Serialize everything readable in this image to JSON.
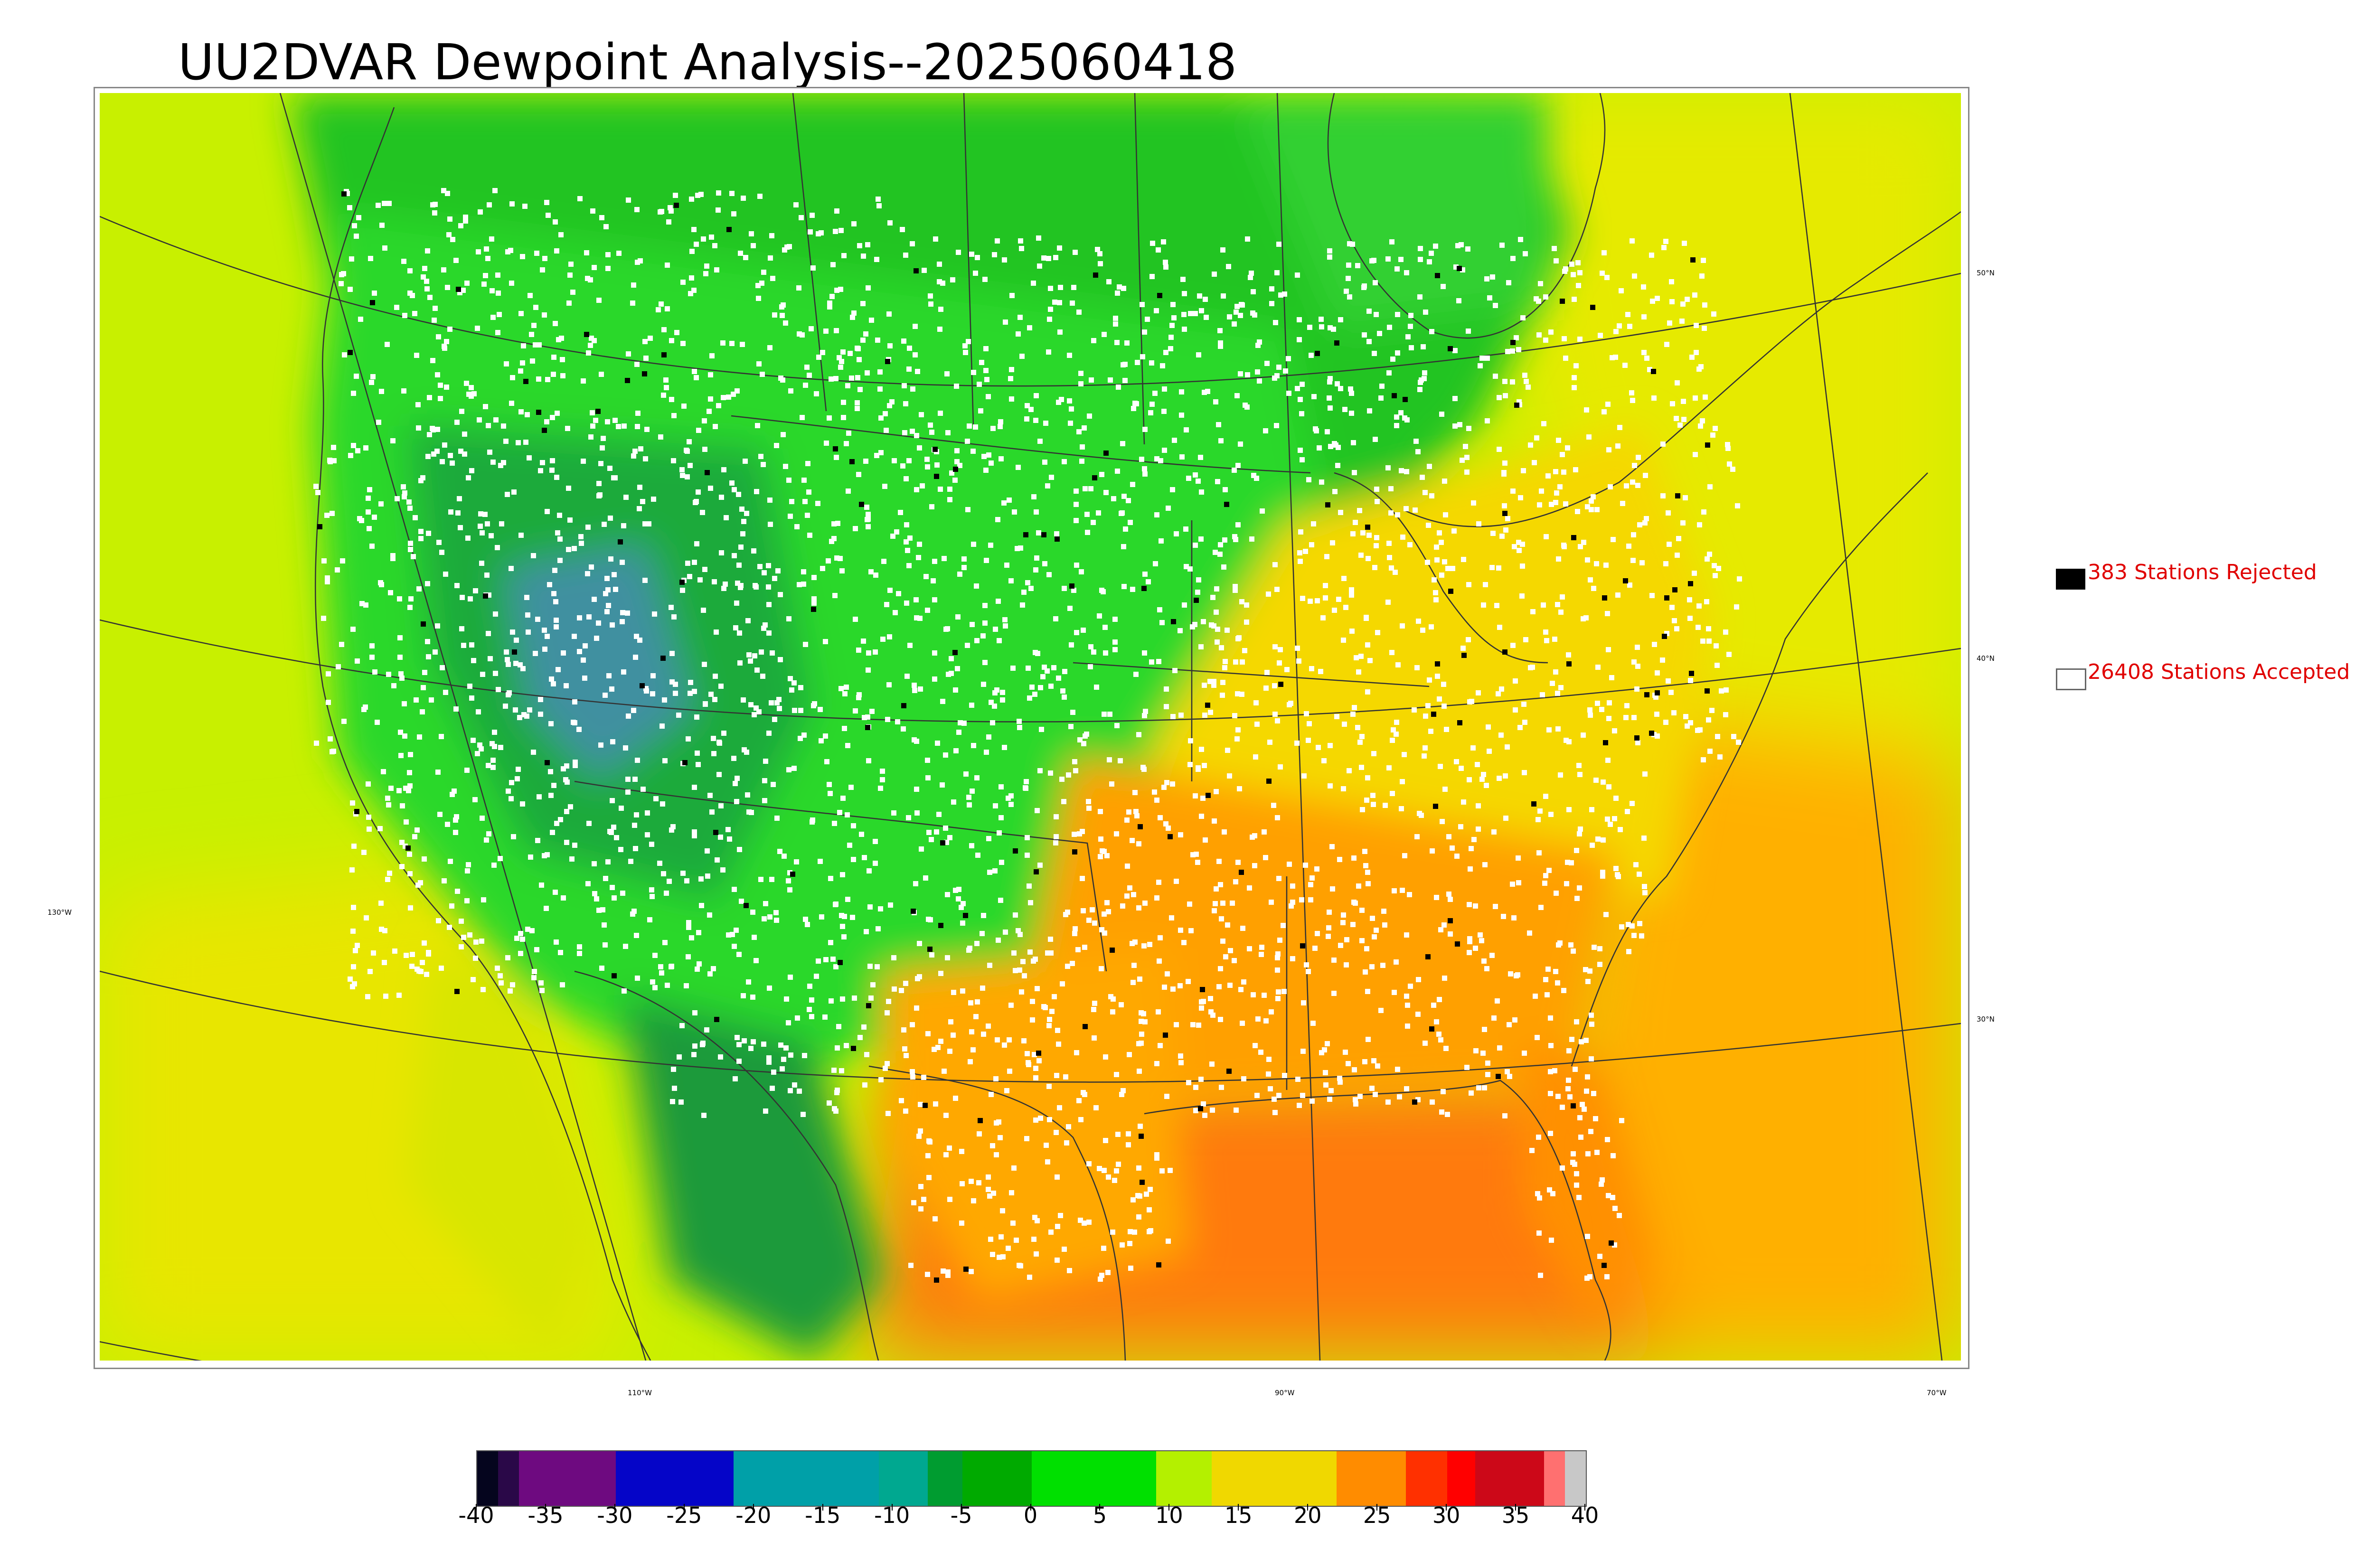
{
  "title": "UU2DVAR Dewpoint Analysis--2025060418",
  "graticule": {
    "lat_labels": [
      "50°N",
      "40°N",
      "30°N"
    ],
    "lon_labels": [
      "130°W",
      "110°W",
      "90°W",
      "70°W"
    ]
  },
  "legend": {
    "rejected": {
      "label": "383 Stations Rejected",
      "color": "#000000"
    },
    "accepted": {
      "label": "26408 Stations Accepted",
      "color": "#ffffff"
    }
  },
  "colorbar": {
    "min": -40,
    "max": 40,
    "tick_labels": [
      "-40",
      "-35",
      "-30",
      "-25",
      "-20",
      "-15",
      "-10",
      "-5",
      "0",
      "5",
      "10",
      "15",
      "20",
      "25",
      "30",
      "35",
      "40"
    ],
    "segments": [
      {
        "from": -40,
        "to": -38.5,
        "color": "#05051e"
      },
      {
        "from": -38.5,
        "to": -37,
        "color": "#2a0848"
      },
      {
        "from": -37,
        "to": -30,
        "color": "#6e0a80"
      },
      {
        "from": -30,
        "to": -21.5,
        "color": "#0505c8"
      },
      {
        "from": -21.5,
        "to": -11,
        "color": "#00a0a8"
      },
      {
        "from": -11,
        "to": -7.5,
        "color": "#00a890"
      },
      {
        "from": -7.5,
        "to": -5,
        "color": "#009c30"
      },
      {
        "from": -5,
        "to": 0,
        "color": "#00aa00"
      },
      {
        "from": 0,
        "to": 9,
        "color": "#00e000"
      },
      {
        "from": 9,
        "to": 13,
        "color": "#b4f000"
      },
      {
        "from": 13,
        "to": 22,
        "color": "#f0d800"
      },
      {
        "from": 22,
        "to": 27,
        "color": "#ff8c00"
      },
      {
        "from": 27,
        "to": 30,
        "color": "#ff3000"
      },
      {
        "from": 30,
        "to": 32,
        "color": "#ff0000"
      },
      {
        "from": 32,
        "to": 37,
        "color": "#cc0818"
      },
      {
        "from": 37,
        "to": 38.5,
        "color": "#ff7070"
      },
      {
        "from": 38.5,
        "to": 40,
        "color": "#c8c8c8"
      }
    ]
  },
  "field_colors": {
    "ocean_west": "#c8f000",
    "ocean_pacific_south": "#e8e600",
    "gulf": "#ff7a10",
    "atlantic_south": "#ffb000",
    "atlantic_north": "#e6ea00",
    "canada": "#20c420",
    "hudson": "#30d030",
    "plains": "#2ad82a",
    "rockies": "#1aaa3a",
    "basin": "#4090a0",
    "east": "#f5d800",
    "southeast": "#ffa000",
    "texas": "#ffa800",
    "florida": "#ff9000",
    "mexico_high": "#1a9a3a",
    "baja": "#d8e600",
    "station_accepted": "#ffffff",
    "station_rejected": "#000000",
    "lines": "#333333"
  }
}
